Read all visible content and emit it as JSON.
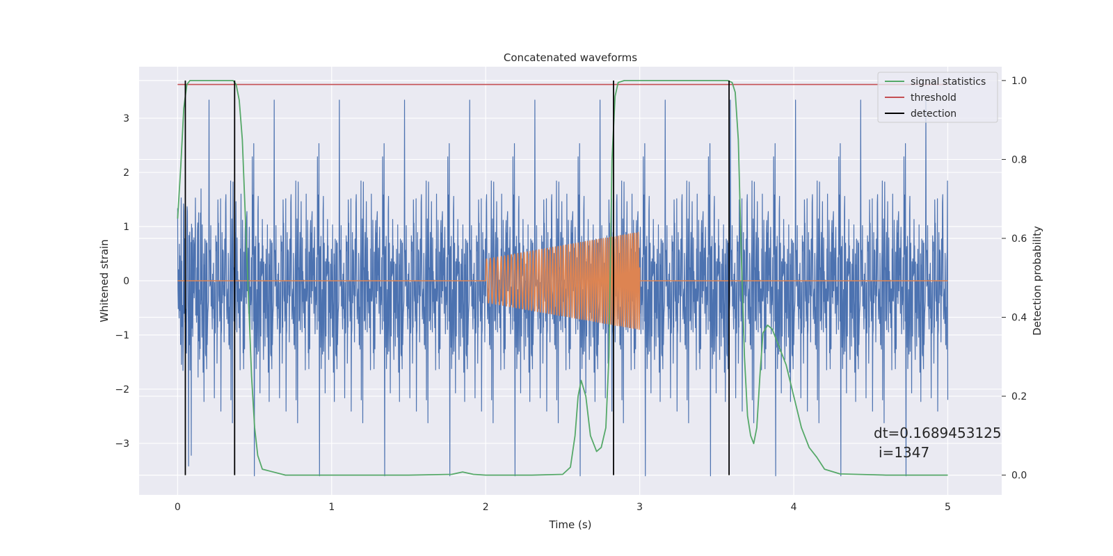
{
  "chart_data": {
    "type": "line",
    "title": "Concatenated waveforms",
    "xlabel": "Time (s)",
    "ylabel": "Whitened strain",
    "y2label": "Detection probability",
    "xlim": [
      -0.25,
      5.35
    ],
    "ylim": [
      -3.95,
      3.95
    ],
    "y2lim": [
      -0.05,
      1.035
    ],
    "x_ticks": [
      0,
      1,
      2,
      3,
      4,
      5
    ],
    "y_ticks": [
      -3,
      -2,
      -1,
      0,
      1,
      2,
      3
    ],
    "y2_ticks": [
      0.0,
      0.2,
      0.4,
      0.6,
      0.8,
      1.0
    ],
    "x_tick_labels": [
      "0",
      "1",
      "2",
      "3",
      "4",
      "5"
    ],
    "y_tick_labels": [
      "−3",
      "−2",
      "−1",
      "0",
      "1",
      "2",
      "3"
    ],
    "y2_tick_labels": [
      "0.0",
      "0.2",
      "0.4",
      "0.6",
      "0.8",
      "1.0"
    ],
    "grid": true,
    "legend_position": "top-right",
    "colors": {
      "noise": "#4c72b0",
      "injection": "#dd8452",
      "statistic": "#55a868",
      "threshold": "#c44e52",
      "detection": "#000000",
      "background": "#eaeaf2",
      "grid": "#ffffff"
    },
    "noise": {
      "x_range": [
        0,
        5
      ],
      "amplitude_envelope": 0.7,
      "peak_range": [
        -3.6,
        3.6
      ]
    },
    "injection": {
      "x_range": [
        2.0,
        3.0
      ],
      "start_amplitude": 0.4,
      "end_amplitude": 0.9,
      "start_frequency_hz": 40,
      "end_frequency_hz": 80
    },
    "series": [
      {
        "name": "signal statistics",
        "axis": "right",
        "x": [
          0.0,
          0.02,
          0.04,
          0.06,
          0.08,
          0.1,
          0.15,
          0.2,
          0.3,
          0.36,
          0.38,
          0.4,
          0.42,
          0.44,
          0.46,
          0.48,
          0.5,
          0.52,
          0.55,
          0.6,
          0.7,
          1.0,
          1.5,
          1.78,
          1.85,
          1.92,
          2.0,
          2.3,
          2.5,
          2.55,
          2.58,
          2.6,
          2.62,
          2.65,
          2.68,
          2.72,
          2.75,
          2.78,
          2.8,
          2.82,
          2.84,
          2.86,
          2.9,
          3.0,
          3.5,
          3.57,
          3.6,
          3.62,
          3.64,
          3.66,
          3.68,
          3.7,
          3.72,
          3.74,
          3.76,
          3.78,
          3.8,
          3.83,
          3.86,
          3.9,
          3.95,
          4.0,
          4.05,
          4.1,
          4.15,
          4.2,
          4.3,
          4.6,
          5.0
        ],
        "y": [
          0.65,
          0.78,
          0.93,
          0.99,
          1.0,
          1.0,
          1.0,
          1.0,
          1.0,
          1.0,
          0.99,
          0.95,
          0.85,
          0.65,
          0.45,
          0.25,
          0.12,
          0.05,
          0.015,
          0.01,
          0.0,
          0.0,
          0.0,
          0.002,
          0.008,
          0.002,
          0.0,
          0.0,
          0.002,
          0.02,
          0.1,
          0.2,
          0.24,
          0.2,
          0.1,
          0.06,
          0.07,
          0.12,
          0.3,
          0.8,
          0.96,
          0.995,
          1.0,
          1.0,
          1.0,
          1.0,
          0.995,
          0.97,
          0.85,
          0.55,
          0.3,
          0.15,
          0.1,
          0.08,
          0.12,
          0.25,
          0.36,
          0.38,
          0.37,
          0.33,
          0.28,
          0.2,
          0.12,
          0.07,
          0.045,
          0.015,
          0.003,
          0.0,
          0.0
        ]
      },
      {
        "name": "threshold",
        "axis": "right",
        "x": [
          0,
          5
        ],
        "y": [
          0.99,
          0.99
        ]
      },
      {
        "name": "detection",
        "axis": "right",
        "x": [
          0.05,
          0.37,
          2.83,
          3.58
        ],
        "y_range": [
          0.0,
          1.0
        ]
      }
    ],
    "annotation": {
      "lines": [
        "dt=0.1689453125",
        "i=1347"
      ],
      "x": 4.5,
      "y": -3.0
    }
  }
}
